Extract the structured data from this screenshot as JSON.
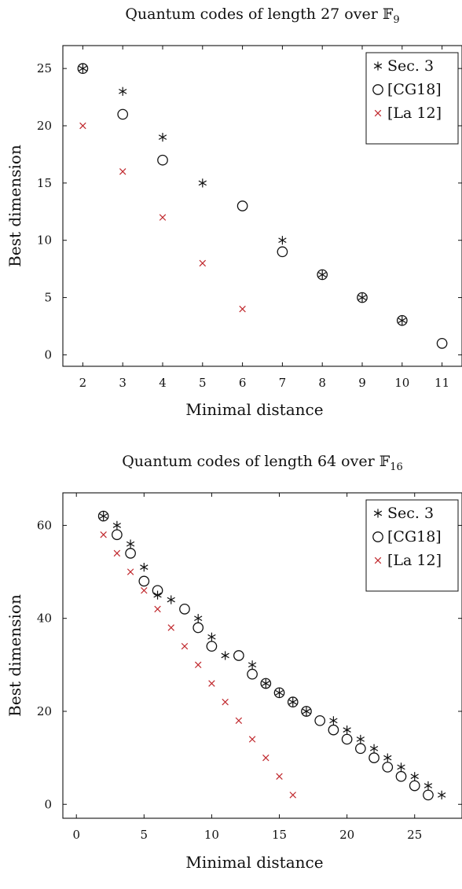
{
  "chart_data": [
    {
      "type": "scatter",
      "title_prefix": "Quantum codes of length 27 over ",
      "title_field": "𝔽",
      "title_sub": "9",
      "xlabel": "Minimal distance",
      "ylabel": "Best dimension",
      "xlim": [
        1.5,
        11.5
      ],
      "ylim": [
        -1,
        27
      ],
      "xticks": [
        2,
        3,
        4,
        5,
        6,
        7,
        8,
        9,
        10,
        11
      ],
      "yticks": [
        0,
        5,
        10,
        15,
        20,
        25
      ],
      "grid": false,
      "legend_position": "top-right",
      "series": [
        {
          "name": "Sec. 3",
          "marker": "asterisk",
          "color": "#111111",
          "points": [
            [
              2,
              25
            ],
            [
              3,
              23
            ],
            [
              4,
              19
            ],
            [
              5,
              15
            ],
            [
              7,
              10
            ],
            [
              8,
              7
            ],
            [
              9,
              5
            ],
            [
              10,
              3
            ]
          ]
        },
        {
          "name": "[CG18]",
          "marker": "circle",
          "color": "#111111",
          "points": [
            [
              2,
              25
            ],
            [
              3,
              21
            ],
            [
              4,
              17
            ],
            [
              6,
              13
            ],
            [
              7,
              9
            ],
            [
              8,
              7
            ],
            [
              9,
              5
            ],
            [
              10,
              3
            ],
            [
              11,
              1
            ]
          ]
        },
        {
          "name": "[La 12]",
          "marker": "cross",
          "color": "#c0282d",
          "points": [
            [
              2,
              20
            ],
            [
              3,
              16
            ],
            [
              4,
              12
            ],
            [
              5,
              8
            ],
            [
              6,
              4
            ]
          ]
        }
      ]
    },
    {
      "type": "scatter",
      "title_prefix": "Quantum codes of length 64 over ",
      "title_field": "𝔽",
      "title_sub": "16",
      "xlabel": "Minimal distance",
      "ylabel": "Best dimension",
      "xlim": [
        -1,
        28.5
      ],
      "ylim": [
        -3,
        67
      ],
      "xticks": [
        0,
        5,
        10,
        15,
        20,
        25
      ],
      "yticks": [
        0,
        20,
        40,
        60
      ],
      "grid": false,
      "legend_position": "top-right",
      "series": [
        {
          "name": "Sec. 3",
          "marker": "asterisk",
          "color": "#111111",
          "points": [
            [
              2,
              62
            ],
            [
              3,
              60
            ],
            [
              4,
              56
            ],
            [
              5,
              51
            ],
            [
              6,
              45
            ],
            [
              7,
              44
            ],
            [
              9,
              40
            ],
            [
              10,
              36
            ],
            [
              11,
              32
            ],
            [
              13,
              30
            ],
            [
              14,
              26
            ],
            [
              15,
              24
            ],
            [
              16,
              22
            ],
            [
              17,
              20
            ],
            [
              19,
              18
            ],
            [
              20,
              16
            ],
            [
              21,
              14
            ],
            [
              22,
              12
            ],
            [
              23,
              10
            ],
            [
              24,
              8
            ],
            [
              25,
              6
            ],
            [
              26,
              4
            ],
            [
              27,
              2
            ]
          ]
        },
        {
          "name": "[CG18]",
          "marker": "circle",
          "color": "#111111",
          "points": [
            [
              2,
              62
            ],
            [
              3,
              58
            ],
            [
              4,
              54
            ],
            [
              5,
              48
            ],
            [
              6,
              46
            ],
            [
              8,
              42
            ],
            [
              9,
              38
            ],
            [
              10,
              34
            ],
            [
              12,
              32
            ],
            [
              13,
              28
            ],
            [
              14,
              26
            ],
            [
              15,
              24
            ],
            [
              16,
              22
            ],
            [
              17,
              20
            ],
            [
              18,
              18
            ],
            [
              19,
              16
            ],
            [
              20,
              14
            ],
            [
              21,
              12
            ],
            [
              22,
              10
            ],
            [
              23,
              8
            ],
            [
              24,
              6
            ],
            [
              25,
              4
            ],
            [
              26,
              2
            ]
          ]
        },
        {
          "name": "[La 12]",
          "marker": "cross",
          "color": "#c0282d",
          "points": [
            [
              2,
              58
            ],
            [
              3,
              54
            ],
            [
              4,
              50
            ],
            [
              5,
              46
            ],
            [
              6,
              42
            ],
            [
              7,
              38
            ],
            [
              8,
              34
            ],
            [
              9,
              30
            ],
            [
              10,
              26
            ],
            [
              11,
              22
            ],
            [
              12,
              18
            ],
            [
              13,
              14
            ],
            [
              14,
              10
            ],
            [
              15,
              6
            ],
            [
              16,
              2
            ]
          ]
        }
      ]
    }
  ]
}
